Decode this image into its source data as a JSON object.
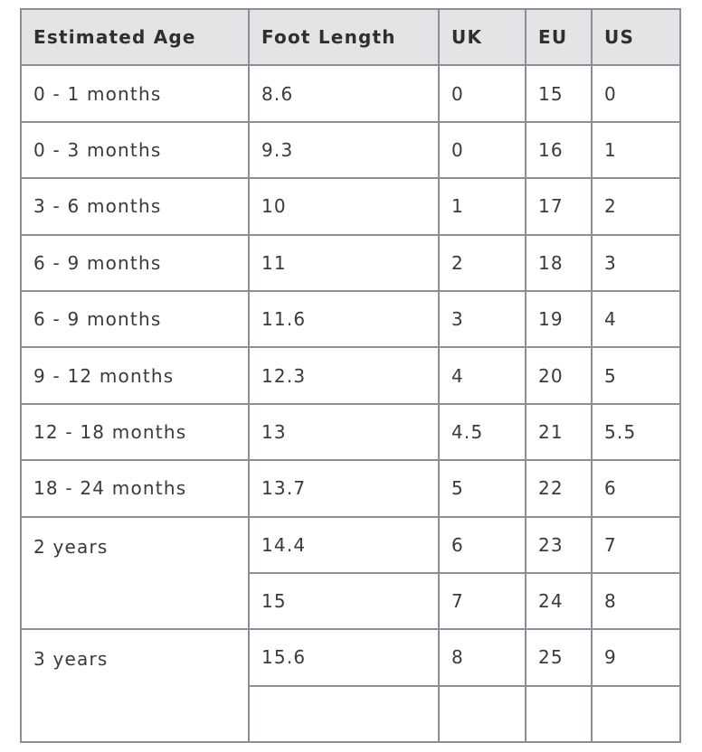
{
  "table": {
    "headers": [
      "Estimated Age",
      "Foot Length",
      "UK",
      "EU",
      "US"
    ],
    "rows": [
      {
        "age": "0 - 1 months",
        "foot": "8.6",
        "uk": "0",
        "eu": "15",
        "us": "0"
      },
      {
        "age": "0 - 3 months",
        "foot": "9.3",
        "uk": "0",
        "eu": "16",
        "us": "1"
      },
      {
        "age": "3 - 6 months",
        "foot": "10",
        "uk": "1",
        "eu": "17",
        "us": "2"
      },
      {
        "age": "6 - 9 months",
        "foot": "11",
        "uk": "2",
        "eu": "18",
        "us": "3"
      },
      {
        "age": "6 - 9 months",
        "foot": "11.6",
        "uk": "3",
        "eu": "19",
        "us": "4"
      },
      {
        "age": "9 - 12 months",
        "foot": "12.3",
        "uk": "4",
        "eu": "20",
        "us": "5"
      },
      {
        "age": "12 - 18 months",
        "foot": "13",
        "uk": "4.5",
        "eu": "21",
        "us": "5.5"
      },
      {
        "age": "18 - 24 months",
        "foot": "13.7",
        "uk": "5",
        "eu": "22",
        "us": "6"
      },
      {
        "age": "2 years",
        "foot": "14.4",
        "uk": "6",
        "eu": "23",
        "us": "7"
      },
      {
        "age": "",
        "foot": "15",
        "uk": "7",
        "eu": "24",
        "us": "8"
      },
      {
        "age": "3 years",
        "foot": "15.6",
        "uk": "8",
        "eu": "25",
        "us": "9"
      },
      {
        "age": "",
        "foot": "",
        "uk": "",
        "eu": "",
        "us": ""
      }
    ]
  }
}
